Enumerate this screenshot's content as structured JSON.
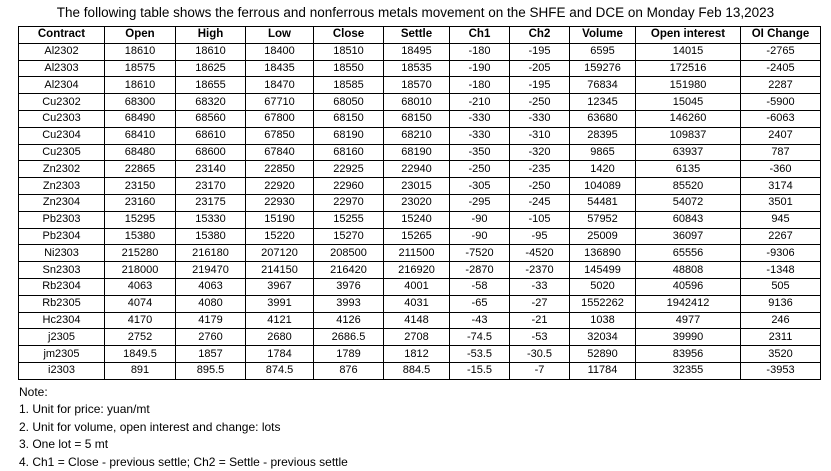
{
  "title": "The following table shows the ferrous and nonferrous metals movement on the SHFE and DCE on Monday Feb 13,2023",
  "table": {
    "headers": [
      "Contract",
      "Open",
      "High",
      "Low",
      "Close",
      "Settle",
      "Ch1",
      "Ch2",
      "Volume",
      "Open interest",
      "OI Change"
    ],
    "rows": [
      [
        "Al2302",
        "18610",
        "18610",
        "18400",
        "18510",
        "18495",
        "-180",
        "-195",
        "6595",
        "14015",
        "-2765"
      ],
      [
        "Al2303",
        "18575",
        "18625",
        "18435",
        "18550",
        "18535",
        "-190",
        "-205",
        "159276",
        "172516",
        "-2405"
      ],
      [
        "Al2304",
        "18610",
        "18655",
        "18470",
        "18585",
        "18570",
        "-180",
        "-195",
        "76834",
        "151980",
        "2287"
      ],
      [
        "Cu2302",
        "68300",
        "68320",
        "67710",
        "68050",
        "68010",
        "-210",
        "-250",
        "12345",
        "15045",
        "-5900"
      ],
      [
        "Cu2303",
        "68490",
        "68560",
        "67800",
        "68150",
        "68150",
        "-330",
        "-330",
        "63680",
        "146260",
        "-6063"
      ],
      [
        "Cu2304",
        "68410",
        "68610",
        "67850",
        "68190",
        "68210",
        "-330",
        "-310",
        "28395",
        "109837",
        "2407"
      ],
      [
        "Cu2305",
        "68480",
        "68600",
        "67840",
        "68160",
        "68190",
        "-350",
        "-320",
        "9865",
        "63937",
        "787"
      ],
      [
        "Zn2302",
        "22865",
        "23140",
        "22850",
        "22925",
        "22940",
        "-250",
        "-235",
        "1420",
        "6135",
        "-360"
      ],
      [
        "Zn2303",
        "23150",
        "23170",
        "22920",
        "22960",
        "23015",
        "-305",
        "-250",
        "104089",
        "85520",
        "3174"
      ],
      [
        "Zn2304",
        "23160",
        "23175",
        "22930",
        "22970",
        "23020",
        "-295",
        "-245",
        "54481",
        "54072",
        "3501"
      ],
      [
        "Pb2303",
        "15295",
        "15330",
        "15190",
        "15255",
        "15240",
        "-90",
        "-105",
        "57952",
        "60843",
        "945"
      ],
      [
        "Pb2304",
        "15380",
        "15380",
        "15220",
        "15270",
        "15265",
        "-90",
        "-95",
        "25009",
        "36097",
        "2267"
      ],
      [
        "Ni2303",
        "215280",
        "216180",
        "207120",
        "208500",
        "211500",
        "-7520",
        "-4520",
        "136890",
        "65556",
        "-9306"
      ],
      [
        "Sn2303",
        "218000",
        "219470",
        "214150",
        "216420",
        "216920",
        "-2870",
        "-2370",
        "145499",
        "48808",
        "-1348"
      ],
      [
        "Rb2304",
        "4063",
        "4063",
        "3967",
        "3976",
        "4001",
        "-58",
        "-33",
        "5020",
        "40596",
        "505"
      ],
      [
        "Rb2305",
        "4074",
        "4080",
        "3991",
        "3993",
        "4031",
        "-65",
        "-27",
        "1552262",
        "1942412",
        "9136"
      ],
      [
        "Hc2304",
        "4170",
        "4179",
        "4121",
        "4126",
        "4148",
        "-43",
        "-21",
        "1038",
        "4977",
        "246"
      ],
      [
        "j2305",
        "2752",
        "2760",
        "2680",
        "2686.5",
        "2708",
        "-74.5",
        "-53",
        "32034",
        "39990",
        "2311"
      ],
      [
        "jm2305",
        "1849.5",
        "1857",
        "1784",
        "1789",
        "1812",
        "-53.5",
        "-30.5",
        "52890",
        "83956",
        "3520"
      ],
      [
        "i2303",
        "891",
        "895.5",
        "874.5",
        "876",
        "884.5",
        "-15.5",
        "-7",
        "11784",
        "32355",
        "-3953"
      ]
    ]
  },
  "notes": {
    "label": "Note:",
    "items": [
      "1. Unit for price: yuan/mt",
      "2. Unit for volume, open interest and change: lots",
      "3. One lot = 5 mt",
      "4. Ch1 = Close - previous settle; Ch2 = Settle - previous settle"
    ]
  }
}
